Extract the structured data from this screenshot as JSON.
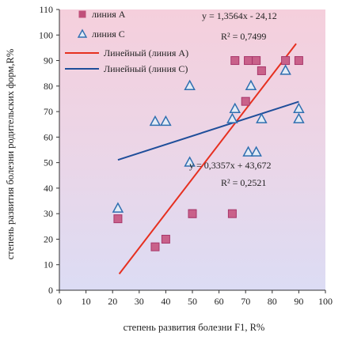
{
  "chart_data": {
    "type": "scatter",
    "title": "",
    "xlabel": "степень развития болезни  F1, R%",
    "ylabel": "степень развития болезни родительских форм,R%",
    "xlim": [
      0,
      100
    ],
    "ylim": [
      0,
      110
    ],
    "xticks": [
      "0",
      "10",
      "20",
      "30",
      "40",
      "50",
      "60",
      "70",
      "80",
      "90",
      "100"
    ],
    "yticks": [
      "0",
      "10",
      "20",
      "30",
      "40",
      "50",
      "60",
      "70",
      "80",
      "90",
      "100",
      "110"
    ],
    "grid": false,
    "legend_position": "top-left",
    "background": "vertical gradient, pink to lavender",
    "series": [
      {
        "name": "линия А",
        "marker": "square",
        "color": "#c0507a",
        "points": [
          [
            22,
            28
          ],
          [
            36,
            17
          ],
          [
            40,
            20
          ],
          [
            50,
            30
          ],
          [
            50,
            30
          ],
          [
            65,
            30
          ],
          [
            66,
            90
          ],
          [
            70,
            74
          ],
          [
            71,
            90
          ],
          [
            74,
            90
          ],
          [
            76,
            86
          ],
          [
            85,
            90
          ],
          [
            90,
            90
          ]
        ]
      },
      {
        "name": "линия С",
        "marker": "triangle",
        "color": "#2f6fb0",
        "points": [
          [
            22,
            32
          ],
          [
            36,
            66
          ],
          [
            40,
            66
          ],
          [
            49,
            50
          ],
          [
            49,
            80
          ],
          [
            65,
            67
          ],
          [
            66,
            71
          ],
          [
            71,
            54
          ],
          [
            72,
            80
          ],
          [
            74,
            54
          ],
          [
            76,
            67
          ],
          [
            85,
            86
          ],
          [
            90,
            71
          ],
          [
            90,
            67
          ]
        ]
      }
    ],
    "trendlines": [
      {
        "name": "Линейный (линия А)",
        "color": "#e63020",
        "slope": 1.3564,
        "intercept": -24.12,
        "x_range": [
          22.5,
          89
        ],
        "equation": "y = 1,3564x - 24,12",
        "r2": "R² = 0,7499"
      },
      {
        "name": "Линейный (линия С)",
        "color": "#1f4e9a",
        "slope": 0.3357,
        "intercept": 43.672,
        "x_range": [
          22,
          90
        ],
        "equation": "y = 0,3357x + 43,672",
        "r2": "R² = 0,2521"
      }
    ]
  }
}
